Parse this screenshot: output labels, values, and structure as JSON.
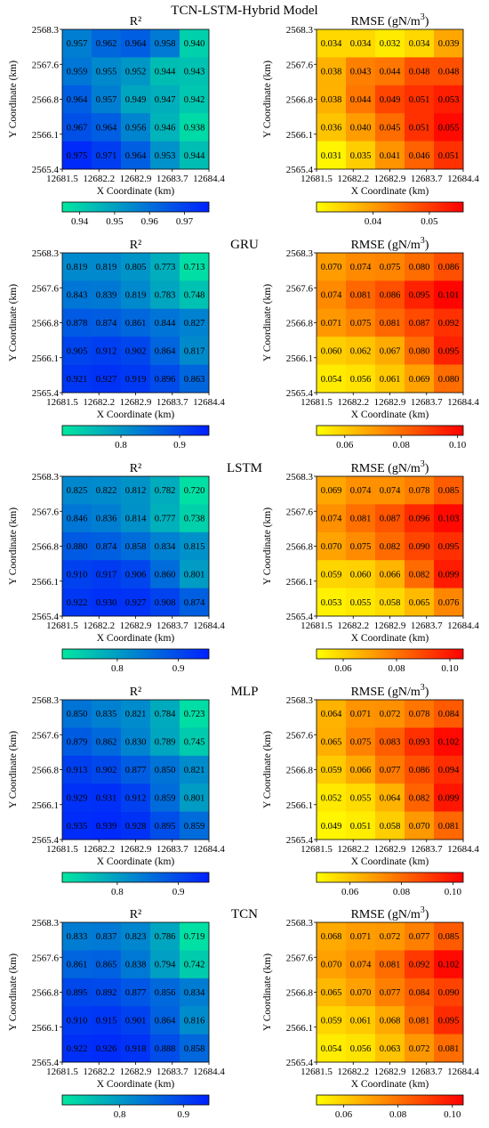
{
  "figure_title": "TCN-LSTM-Hybrid Model",
  "chart_data": [
    {
      "type": "heatmap",
      "model": "TCN-LSTM-Hybrid Model",
      "metric": "R²",
      "title": "R²",
      "xlabel": "X Coordinate (km)",
      "ylabel": "Y Coordinate (km)",
      "x_ticks": [
        "12681.5",
        "12682.2",
        "12682.9",
        "12683.7",
        "12684.4"
      ],
      "y_ticks": [
        "2568.3",
        "2567.6",
        "2566.8",
        "2566.1",
        "2565.4"
      ],
      "values": [
        [
          "0.957",
          "0.962",
          "0.964",
          "0.958",
          "0.940"
        ],
        [
          "0.959",
          "0.955",
          "0.952",
          "0.944",
          "0.943"
        ],
        [
          "0.964",
          "0.957",
          "0.949",
          "0.947",
          "0.942"
        ],
        [
          "0.967",
          "0.964",
          "0.956",
          "0.946",
          "0.938"
        ],
        [
          "0.975",
          "0.971",
          "0.964",
          "0.953",
          "0.944"
        ]
      ],
      "colorscale": "green-blue",
      "range": [
        0.935,
        0.977
      ],
      "colorbar_ticks": [
        "0.94",
        "0.95",
        "0.96",
        "0.97"
      ]
    },
    {
      "type": "heatmap",
      "model": "TCN-LSTM-Hybrid Model",
      "metric": "RMSE",
      "title": "RMSE (gN/m3)",
      "xlabel": "X Coordinate (km)",
      "ylabel": "Y Coordinate (km)",
      "x_ticks": [
        "12681.5",
        "12682.2",
        "12682.9",
        "12683.7",
        "12684.4"
      ],
      "y_ticks": [
        "2568.3",
        "2567.6",
        "2566.8",
        "2566.1",
        "2565.4"
      ],
      "values": [
        [
          "0.034",
          "0.034",
          "0.032",
          "0.034",
          "0.039"
        ],
        [
          "0.038",
          "0.043",
          "0.044",
          "0.048",
          "0.048"
        ],
        [
          "0.038",
          "0.044",
          "0.049",
          "0.051",
          "0.053"
        ],
        [
          "0.036",
          "0.040",
          "0.045",
          "0.051",
          "0.055"
        ],
        [
          "0.031",
          "0.035",
          "0.041",
          "0.046",
          "0.051"
        ]
      ],
      "colorscale": "yellow-red",
      "range": [
        0.03,
        0.056
      ],
      "colorbar_ticks": [
        "0.04",
        "0.05"
      ]
    },
    {
      "type": "heatmap",
      "model": "GRU",
      "metric": "R²",
      "title": "R²",
      "xlabel": "X Coordinate (km)",
      "ylabel": "Y Coordinate (km)",
      "x_ticks": [
        "12681.5",
        "12682.2",
        "12682.9",
        "12683.7",
        "12684.4"
      ],
      "y_ticks": [
        "2568.3",
        "2567.6",
        "2566.8",
        "2566.1",
        "2565.4"
      ],
      "values": [
        [
          "0.819",
          "0.819",
          "0.805",
          "0.773",
          "0.713"
        ],
        [
          "0.843",
          "0.839",
          "0.819",
          "0.783",
          "0.748"
        ],
        [
          "0.878",
          "0.874",
          "0.861",
          "0.844",
          "0.827"
        ],
        [
          "0.905",
          "0.912",
          "0.902",
          "0.864",
          "0.817"
        ],
        [
          "0.921",
          "0.927",
          "0.919",
          "0.896",
          "0.863"
        ]
      ],
      "colorscale": "green-blue",
      "range": [
        0.7,
        0.95
      ],
      "colorbar_ticks": [
        "0.8",
        "0.9"
      ]
    },
    {
      "type": "heatmap",
      "model": "GRU",
      "metric": "RMSE",
      "title": "RMSE (gN/m3)",
      "xlabel": "X Coordinate (km)",
      "ylabel": "Y Coordinate (km)",
      "x_ticks": [
        "12681.5",
        "12682.2",
        "12682.9",
        "12683.7",
        "12684.4"
      ],
      "y_ticks": [
        "2568.3",
        "2567.6",
        "2566.8",
        "2566.1",
        "2565.4"
      ],
      "values": [
        [
          "0.070",
          "0.074",
          "0.075",
          "0.080",
          "0.086"
        ],
        [
          "0.074",
          "0.081",
          "0.086",
          "0.095",
          "0.101"
        ],
        [
          "0.071",
          "0.075",
          "0.081",
          "0.087",
          "0.092"
        ],
        [
          "0.060",
          "0.062",
          "0.067",
          "0.080",
          "0.095"
        ],
        [
          "0.054",
          "0.056",
          "0.061",
          "0.069",
          "0.080"
        ]
      ],
      "colorscale": "yellow-red",
      "range": [
        0.05,
        0.102
      ],
      "colorbar_ticks": [
        "0.06",
        "0.08",
        "0.10"
      ]
    },
    {
      "type": "heatmap",
      "model": "LSTM",
      "metric": "R²",
      "title": "R²",
      "xlabel": "X Coordinate (km)",
      "ylabel": "Y Coordinate (km)",
      "x_ticks": [
        "12681.5",
        "12682.2",
        "12682.9",
        "12683.7",
        "12684.4"
      ],
      "y_ticks": [
        "2568.3",
        "2567.6",
        "2566.8",
        "2566.1",
        "2565.4"
      ],
      "values": [
        [
          "0.825",
          "0.822",
          "0.812",
          "0.782",
          "0.720"
        ],
        [
          "0.846",
          "0.836",
          "0.814",
          "0.777",
          "0.738"
        ],
        [
          "0.880",
          "0.874",
          "0.858",
          "0.834",
          "0.815"
        ],
        [
          "0.910",
          "0.917",
          "0.906",
          "0.860",
          "0.801"
        ],
        [
          "0.922",
          "0.930",
          "0.927",
          "0.908",
          "0.874"
        ]
      ],
      "colorscale": "green-blue",
      "range": [
        0.71,
        0.95
      ],
      "colorbar_ticks": [
        "0.8",
        "0.9"
      ]
    },
    {
      "type": "heatmap",
      "model": "LSTM",
      "metric": "RMSE",
      "title": "RMSE (gN/m3)",
      "xlabel": "X Coordinate (km)",
      "ylabel": "Y Coordinate (km)",
      "x_ticks": [
        "12681.5",
        "12682.2",
        "12682.9",
        "12683.7",
        "12684.4"
      ],
      "y_ticks": [
        "2568.3",
        "2567.6",
        "2566.8",
        "2566.1",
        "2565.4"
      ],
      "values": [
        [
          "0.069",
          "0.074",
          "0.074",
          "0.078",
          "0.085"
        ],
        [
          "0.074",
          "0.081",
          "0.087",
          "0.096",
          "0.103"
        ],
        [
          "0.070",
          "0.075",
          "0.082",
          "0.090",
          "0.095"
        ],
        [
          "0.059",
          "0.060",
          "0.066",
          "0.082",
          "0.099"
        ],
        [
          "0.053",
          "0.055",
          "0.058",
          "0.065",
          "0.076"
        ]
      ],
      "colorscale": "yellow-red",
      "range": [
        0.05,
        0.105
      ],
      "colorbar_ticks": [
        "0.06",
        "0.08",
        "0.10"
      ]
    },
    {
      "type": "heatmap",
      "model": "MLP",
      "metric": "R²",
      "title": "R²",
      "xlabel": "X Coordinate (km)",
      "ylabel": "Y Coordinate (km)",
      "x_ticks": [
        "12681.5",
        "12682.2",
        "12682.9",
        "12683.7",
        "12684.4"
      ],
      "y_ticks": [
        "2568.3",
        "2567.6",
        "2566.8",
        "2566.1",
        "2565.4"
      ],
      "values": [
        [
          "0.850",
          "0.835",
          "0.821",
          "0.784",
          "0.723"
        ],
        [
          "0.879",
          "0.862",
          "0.830",
          "0.789",
          "0.745"
        ],
        [
          "0.913",
          "0.902",
          "0.877",
          "0.850",
          "0.821"
        ],
        [
          "0.929",
          "0.931",
          "0.912",
          "0.859",
          "0.801"
        ],
        [
          "0.935",
          "0.939",
          "0.928",
          "0.895",
          "0.859"
        ]
      ],
      "colorscale": "green-blue",
      "range": [
        0.71,
        0.95
      ],
      "colorbar_ticks": [
        "0.8",
        "0.9"
      ]
    },
    {
      "type": "heatmap",
      "model": "MLP",
      "metric": "RMSE",
      "title": "RMSE (gN/m3)",
      "xlabel": "X Coordinate (km)",
      "ylabel": "Y Coordinate (km)",
      "x_ticks": [
        "12681.5",
        "12682.2",
        "12682.9",
        "12683.7",
        "12684.4"
      ],
      "y_ticks": [
        "2568.3",
        "2567.6",
        "2566.8",
        "2566.1",
        "2565.4"
      ],
      "values": [
        [
          "0.064",
          "0.071",
          "0.072",
          "0.078",
          "0.084"
        ],
        [
          "0.065",
          "0.075",
          "0.083",
          "0.093",
          "0.102"
        ],
        [
          "0.059",
          "0.066",
          "0.077",
          "0.086",
          "0.094"
        ],
        [
          "0.052",
          "0.055",
          "0.064",
          "0.082",
          "0.099"
        ],
        [
          "0.049",
          "0.051",
          "0.058",
          "0.070",
          "0.081"
        ]
      ],
      "colorscale": "yellow-red",
      "range": [
        0.047,
        0.104
      ],
      "colorbar_ticks": [
        "0.06",
        "0.08",
        "0.10"
      ]
    },
    {
      "type": "heatmap",
      "model": "TCN",
      "metric": "R²",
      "title": "R²",
      "xlabel": "X Coordinate (km)",
      "ylabel": "Y Coordinate (km)",
      "x_ticks": [
        "12681.5",
        "12682.2",
        "12682.9",
        "12683.7",
        "12684.4"
      ],
      "y_ticks": [
        "2568.3",
        "2567.6",
        "2566.8",
        "2566.1",
        "2565.4"
      ],
      "values": [
        [
          "0.833",
          "0.837",
          "0.823",
          "0.786",
          "0.719"
        ],
        [
          "0.861",
          "0.865",
          "0.838",
          "0.794",
          "0.742"
        ],
        [
          "0.895",
          "0.892",
          "0.877",
          "0.856",
          "0.834"
        ],
        [
          "0.910",
          "0.915",
          "0.901",
          "0.864",
          "0.816"
        ],
        [
          "0.922",
          "0.926",
          "0.918",
          "0.888",
          "0.858"
        ]
      ],
      "colorscale": "green-blue",
      "range": [
        0.71,
        0.94
      ],
      "colorbar_ticks": [
        "0.8",
        "0.9"
      ]
    },
    {
      "type": "heatmap",
      "model": "TCN",
      "metric": "RMSE",
      "title": "RMSE (gN/m3)",
      "xlabel": "X Coordinate (km)",
      "ylabel": "Y Coordinate (km)",
      "x_ticks": [
        "12681.5",
        "12682.2",
        "12682.9",
        "12683.7",
        "12684.4"
      ],
      "y_ticks": [
        "2568.3",
        "2567.6",
        "2566.8",
        "2566.1",
        "2565.4"
      ],
      "values": [
        [
          "0.068",
          "0.071",
          "0.072",
          "0.077",
          "0.085"
        ],
        [
          "0.070",
          "0.074",
          "0.081",
          "0.092",
          "0.102"
        ],
        [
          "0.065",
          "0.070",
          "0.077",
          "0.084",
          "0.090"
        ],
        [
          "0.059",
          "0.061",
          "0.068",
          "0.081",
          "0.095"
        ],
        [
          "0.054",
          "0.056",
          "0.063",
          "0.072",
          "0.081"
        ]
      ],
      "colorscale": "yellow-red",
      "range": [
        0.05,
        0.104
      ],
      "colorbar_ticks": [
        "0.06",
        "0.08",
        "0.10"
      ]
    }
  ],
  "colorscales": {
    "green-blue": [
      "#00e8a0",
      "#0020ff"
    ],
    "yellow-red": [
      "#ffff00",
      "#ff8000",
      "#ff0000"
    ]
  }
}
